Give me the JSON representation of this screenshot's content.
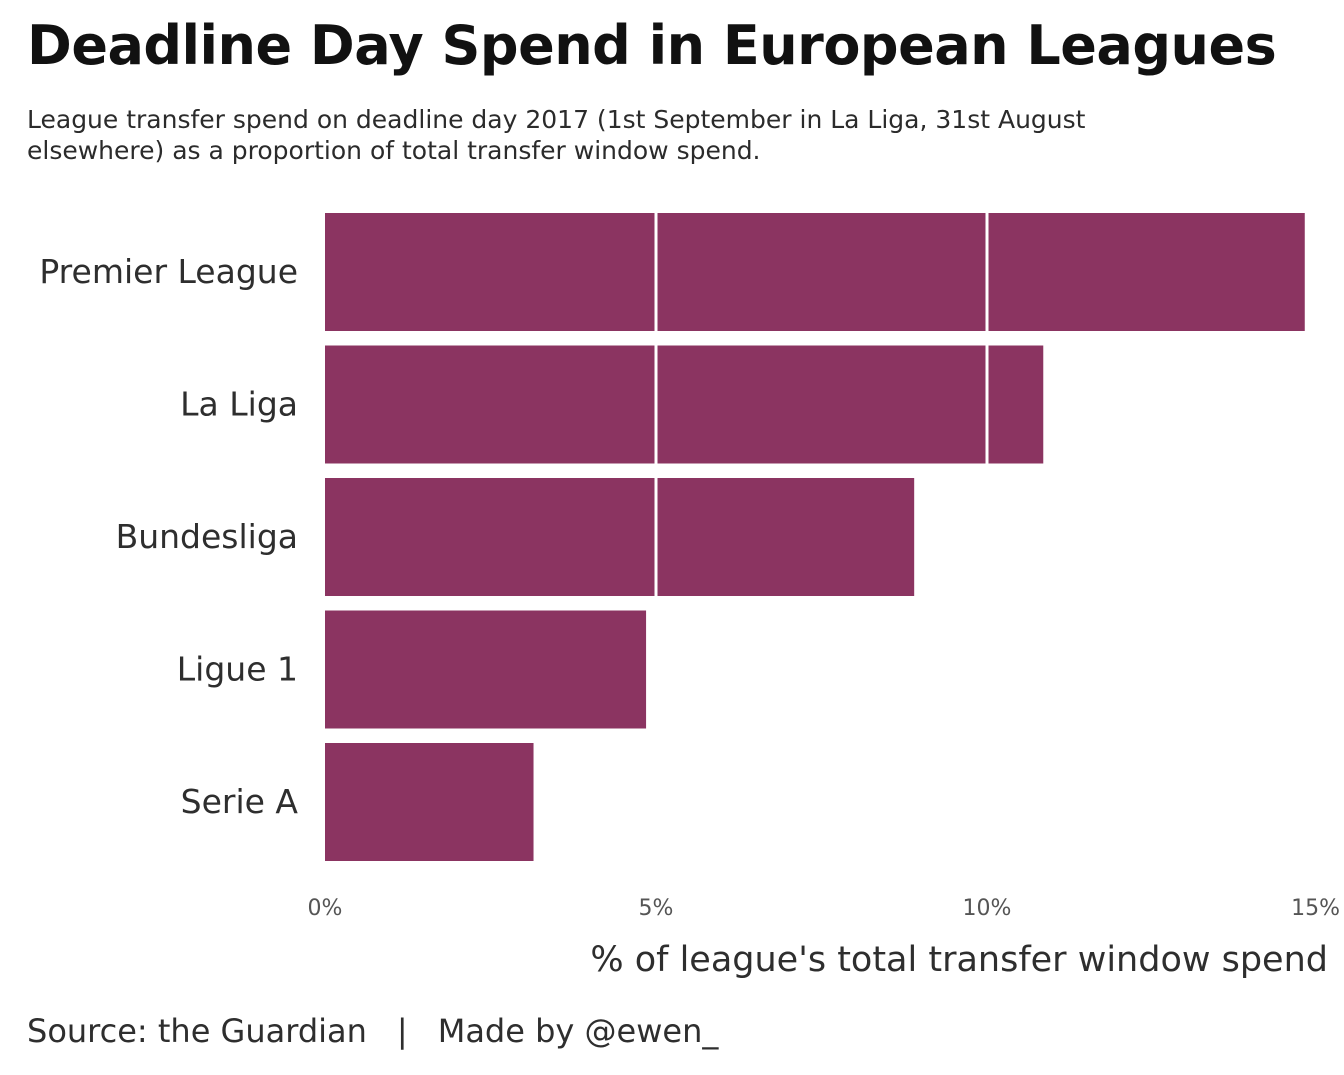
{
  "title": "Deadline Day Spend in European Leagues",
  "subtitle": "League transfer spend on deadline day 2017 (1st September in La Liga, 31st August elsewhere) as a proportion of total transfer window spend.",
  "footer": {
    "source": "Source: the Guardian",
    "separator": "|",
    "credit": "Made by @ewen_"
  },
  "colors": {
    "bar": "#8b3461",
    "grid": "#ffffff",
    "label": "#2e2e2e"
  },
  "chart_data": {
    "type": "bar",
    "orientation": "horizontal",
    "categories": [
      "Premier League",
      "La Liga",
      "Bundesliga",
      "Ligue 1",
      "Serie A"
    ],
    "values": [
      14.8,
      10.85,
      8.9,
      4.85,
      3.15
    ],
    "unit": "%",
    "xlabel": "% of league's total transfer window spend",
    "ylabel": "",
    "xlim": [
      0,
      15
    ],
    "xticks": [
      0,
      5,
      10,
      15
    ],
    "xtick_labels": [
      "0%",
      "5%",
      "10%",
      "15%"
    ],
    "grid": "vertical lines at 5% and 10%, drawn over bars"
  }
}
